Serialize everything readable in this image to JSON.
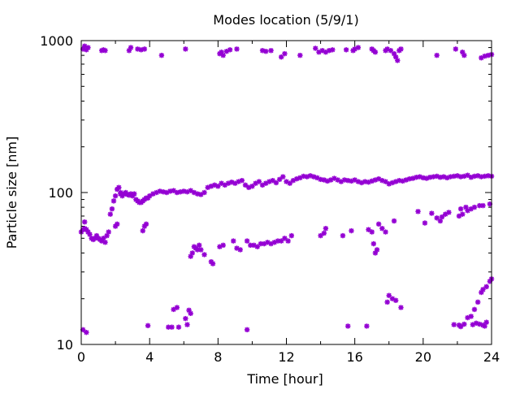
{
  "chart_data": {
    "type": "scatter",
    "title": "Modes location (5/9/1)",
    "xlabel": "Time [hour]",
    "ylabel": "Particle size [nm]",
    "xlim": [
      0,
      24
    ],
    "ylim": [
      10,
      1000
    ],
    "yscale": "log",
    "grid": false,
    "legend": "none",
    "x_ticks": [
      "0",
      "4",
      "8",
      "12",
      "16",
      "20",
      "24"
    ],
    "x_tick_values": [
      0,
      4,
      8,
      12,
      16,
      20,
      24
    ],
    "y_ticks": [
      "10",
      "100",
      "1000"
    ],
    "y_tick_values": [
      10,
      100,
      1000
    ],
    "marker_color": "#9400d3",
    "series": [
      {
        "values_xy": [
          [
            0.0,
            55
          ],
          [
            0.1,
            57
          ],
          [
            0.2,
            58
          ],
          [
            0.3,
            57
          ],
          [
            0.4,
            55
          ],
          [
            0.5,
            53
          ],
          [
            0.6,
            50
          ],
          [
            0.7,
            49
          ],
          [
            0.8,
            50
          ],
          [
            0.9,
            52
          ],
          [
            1.0,
            50
          ],
          [
            1.1,
            49
          ],
          [
            1.2,
            48
          ],
          [
            1.3,
            50
          ],
          [
            1.4,
            47
          ],
          [
            1.5,
            52
          ],
          [
            1.6,
            55
          ],
          [
            1.7,
            72
          ],
          [
            1.8,
            78
          ],
          [
            1.9,
            88
          ],
          [
            2.0,
            95
          ],
          [
            2.1,
            105
          ],
          [
            2.2,
            108
          ],
          [
            2.3,
            100
          ],
          [
            2.4,
            95
          ],
          [
            2.5,
            98
          ],
          [
            2.6,
            100
          ],
          [
            2.7,
            97
          ],
          [
            2.8,
            96
          ],
          [
            2.9,
            98
          ],
          [
            3.0,
            95
          ],
          [
            3.1,
            98
          ],
          [
            3.2,
            90
          ],
          [
            3.3,
            88
          ],
          [
            3.4,
            86
          ],
          [
            3.5,
            86
          ],
          [
            3.6,
            88
          ],
          [
            3.7,
            90
          ],
          [
            3.8,
            92
          ],
          [
            3.9,
            92
          ],
          [
            4.0,
            95
          ],
          [
            4.2,
            98
          ],
          [
            4.4,
            100
          ],
          [
            4.6,
            102
          ],
          [
            4.8,
            101
          ],
          [
            5.0,
            100
          ],
          [
            5.2,
            102
          ],
          [
            5.4,
            103
          ],
          [
            5.6,
            100
          ],
          [
            5.8,
            101
          ],
          [
            6.0,
            102
          ],
          [
            6.2,
            101
          ],
          [
            6.4,
            103
          ],
          [
            6.6,
            100
          ],
          [
            6.8,
            98
          ],
          [
            7.0,
            97
          ],
          [
            7.2,
            100
          ],
          [
            7.4,
            108
          ],
          [
            7.6,
            110
          ],
          [
            7.8,
            112
          ],
          [
            8.0,
            110
          ],
          [
            8.2,
            115
          ],
          [
            8.4,
            112
          ],
          [
            8.6,
            115
          ],
          [
            8.8,
            117
          ],
          [
            9.0,
            115
          ],
          [
            9.2,
            118
          ],
          [
            9.4,
            120
          ],
          [
            9.6,
            112
          ],
          [
            9.8,
            108
          ],
          [
            10.0,
            110
          ],
          [
            10.2,
            115
          ],
          [
            10.4,
            118
          ],
          [
            10.6,
            112
          ],
          [
            10.8,
            115
          ],
          [
            11.0,
            118
          ],
          [
            11.2,
            120
          ],
          [
            11.4,
            116
          ],
          [
            11.6,
            122
          ],
          [
            11.8,
            127
          ],
          [
            12.0,
            118
          ],
          [
            12.2,
            115
          ],
          [
            12.4,
            120
          ],
          [
            12.6,
            123
          ],
          [
            12.8,
            125
          ],
          [
            13.0,
            128
          ],
          [
            13.2,
            127
          ],
          [
            13.4,
            129
          ],
          [
            13.6,
            127
          ],
          [
            13.8,
            125
          ],
          [
            14.0,
            122
          ],
          [
            14.2,
            121
          ],
          [
            14.4,
            119
          ],
          [
            14.6,
            121
          ],
          [
            14.8,
            124
          ],
          [
            15.0,
            121
          ],
          [
            15.2,
            118
          ],
          [
            15.4,
            121
          ],
          [
            15.6,
            120
          ],
          [
            15.8,
            119
          ],
          [
            16.0,
            121
          ],
          [
            16.2,
            118
          ],
          [
            16.4,
            116
          ],
          [
            16.6,
            118
          ],
          [
            16.8,
            117
          ],
          [
            17.0,
            119
          ],
          [
            17.2,
            121
          ],
          [
            17.4,
            123
          ],
          [
            17.6,
            120
          ],
          [
            17.8,
            118
          ],
          [
            18.0,
            114
          ],
          [
            18.2,
            116
          ],
          [
            18.4,
            118
          ],
          [
            18.6,
            120
          ],
          [
            18.8,
            119
          ],
          [
            19.0,
            121
          ],
          [
            19.2,
            123
          ],
          [
            19.4,
            124
          ],
          [
            19.6,
            126
          ],
          [
            19.8,
            127
          ],
          [
            20.0,
            125
          ],
          [
            20.2,
            124
          ],
          [
            20.4,
            126
          ],
          [
            20.6,
            127
          ],
          [
            20.8,
            128
          ],
          [
            21.0,
            126
          ],
          [
            21.2,
            127
          ],
          [
            21.4,
            125
          ],
          [
            21.6,
            127
          ],
          [
            21.8,
            128
          ],
          [
            22.0,
            129
          ],
          [
            22.2,
            127
          ],
          [
            22.4,
            128
          ],
          [
            22.6,
            130
          ],
          [
            22.8,
            126
          ],
          [
            23.0,
            128
          ],
          [
            23.2,
            129
          ],
          [
            23.4,
            127
          ],
          [
            23.6,
            128
          ],
          [
            23.8,
            129
          ],
          [
            24.0,
            128
          ],
          [
            0.2,
            64
          ],
          [
            2.0,
            60
          ],
          [
            2.1,
            62
          ],
          [
            2.3,
            98
          ],
          [
            3.6,
            56
          ],
          [
            3.7,
            60
          ],
          [
            3.8,
            62
          ],
          [
            6.4,
            38
          ],
          [
            6.5,
            40
          ],
          [
            6.6,
            44
          ],
          [
            6.7,
            43
          ],
          [
            6.8,
            42
          ],
          [
            6.9,
            45
          ],
          [
            7.0,
            42
          ],
          [
            7.2,
            39
          ],
          [
            7.6,
            35
          ],
          [
            7.7,
            34
          ],
          [
            8.1,
            44
          ],
          [
            8.3,
            45
          ],
          [
            8.9,
            48
          ],
          [
            9.1,
            43
          ],
          [
            9.3,
            42
          ],
          [
            9.7,
            48
          ],
          [
            9.9,
            45
          ],
          [
            10.1,
            45
          ],
          [
            10.3,
            44
          ],
          [
            10.5,
            46
          ],
          [
            10.7,
            46
          ],
          [
            10.9,
            47
          ],
          [
            11.1,
            46
          ],
          [
            11.3,
            47
          ],
          [
            11.5,
            48
          ],
          [
            11.7,
            48
          ],
          [
            11.9,
            50
          ],
          [
            12.1,
            48
          ],
          [
            12.3,
            52
          ],
          [
            14.0,
            52
          ],
          [
            14.2,
            54
          ],
          [
            14.3,
            58
          ],
          [
            15.3,
            52
          ],
          [
            15.8,
            56
          ],
          [
            16.8,
            57
          ],
          [
            17.0,
            55
          ],
          [
            17.1,
            46
          ],
          [
            17.2,
            40
          ],
          [
            17.3,
            42
          ],
          [
            17.4,
            62
          ],
          [
            17.6,
            58
          ],
          [
            17.8,
            55
          ],
          [
            18.3,
            65
          ],
          [
            19.7,
            75
          ],
          [
            20.1,
            63
          ],
          [
            20.5,
            73
          ],
          [
            20.8,
            68
          ],
          [
            21.0,
            65
          ],
          [
            21.1,
            69
          ],
          [
            21.3,
            72
          ],
          [
            21.5,
            74
          ],
          [
            22.1,
            70
          ],
          [
            22.3,
            72
          ],
          [
            22.6,
            76
          ],
          [
            22.8,
            78
          ],
          [
            23.0,
            80
          ],
          [
            23.3,
            82
          ],
          [
            23.5,
            82
          ],
          [
            23.9,
            84
          ],
          [
            22.2,
            78
          ],
          [
            22.5,
            80
          ]
        ]
      },
      {
        "values_xy": [
          [
            0.1,
            880
          ],
          [
            0.2,
            920
          ],
          [
            0.3,
            870
          ],
          [
            0.4,
            900
          ],
          [
            1.2,
            860
          ],
          [
            1.3,
            870
          ],
          [
            1.4,
            860
          ],
          [
            2.8,
            860
          ],
          [
            2.9,
            900
          ],
          [
            3.3,
            880
          ],
          [
            3.5,
            870
          ],
          [
            3.7,
            880
          ],
          [
            4.7,
            800
          ],
          [
            6.1,
            880
          ],
          [
            8.1,
            820
          ],
          [
            8.2,
            840
          ],
          [
            8.3,
            800
          ],
          [
            8.5,
            850
          ],
          [
            8.7,
            870
          ],
          [
            9.1,
            880
          ],
          [
            10.6,
            860
          ],
          [
            10.8,
            850
          ],
          [
            11.1,
            860
          ],
          [
            11.7,
            780
          ],
          [
            11.9,
            820
          ],
          [
            12.8,
            800
          ],
          [
            13.7,
            890
          ],
          [
            13.9,
            840
          ],
          [
            14.1,
            860
          ],
          [
            14.3,
            840
          ],
          [
            14.5,
            860
          ],
          [
            14.7,
            870
          ],
          [
            15.5,
            870
          ],
          [
            15.9,
            860
          ],
          [
            16.0,
            880
          ],
          [
            16.2,
            900
          ],
          [
            17.0,
            880
          ],
          [
            17.1,
            860
          ],
          [
            17.2,
            840
          ],
          [
            17.8,
            860
          ],
          [
            17.9,
            880
          ],
          [
            18.1,
            860
          ],
          [
            18.3,
            820
          ],
          [
            18.4,
            780
          ],
          [
            18.5,
            740
          ],
          [
            18.6,
            860
          ],
          [
            18.7,
            880
          ],
          [
            20.8,
            800
          ],
          [
            21.9,
            880
          ],
          [
            22.3,
            840
          ],
          [
            22.4,
            800
          ],
          [
            23.4,
            770
          ],
          [
            23.6,
            790
          ],
          [
            23.8,
            800
          ],
          [
            24.0,
            810
          ]
        ]
      },
      {
        "values_xy": [
          [
            0.1,
            12.5
          ],
          [
            0.3,
            12.0
          ],
          [
            3.9,
            13.3
          ],
          [
            5.1,
            13.0
          ],
          [
            5.3,
            13.0
          ],
          [
            5.4,
            17.0
          ],
          [
            5.6,
            17.5
          ],
          [
            5.7,
            13.0
          ],
          [
            6.1,
            14.8
          ],
          [
            6.3,
            16.8
          ],
          [
            6.4,
            16.0
          ],
          [
            6.2,
            13.5
          ],
          [
            9.7,
            12.5
          ],
          [
            15.6,
            13.2
          ],
          [
            16.7,
            13.2
          ],
          [
            17.9,
            19.0
          ],
          [
            18.0,
            21.0
          ],
          [
            18.2,
            20.0
          ],
          [
            18.4,
            19.5
          ],
          [
            18.7,
            17.5
          ],
          [
            21.8,
            13.5
          ],
          [
            22.1,
            13.4
          ],
          [
            22.2,
            13.1
          ],
          [
            22.4,
            13.6
          ],
          [
            22.6,
            15.0
          ],
          [
            22.8,
            15.3
          ],
          [
            22.9,
            13.5
          ],
          [
            23.1,
            13.8
          ],
          [
            23.3,
            13.6
          ],
          [
            23.5,
            13.4
          ],
          [
            23.6,
            13.2
          ],
          [
            23.7,
            14.0
          ],
          [
            23.2,
            19.0
          ],
          [
            23.4,
            22.0
          ],
          [
            23.5,
            23.0
          ],
          [
            23.7,
            24.0
          ],
          [
            23.9,
            26.0
          ],
          [
            24.0,
            27.0
          ],
          [
            23.0,
            17.0
          ]
        ]
      }
    ]
  }
}
